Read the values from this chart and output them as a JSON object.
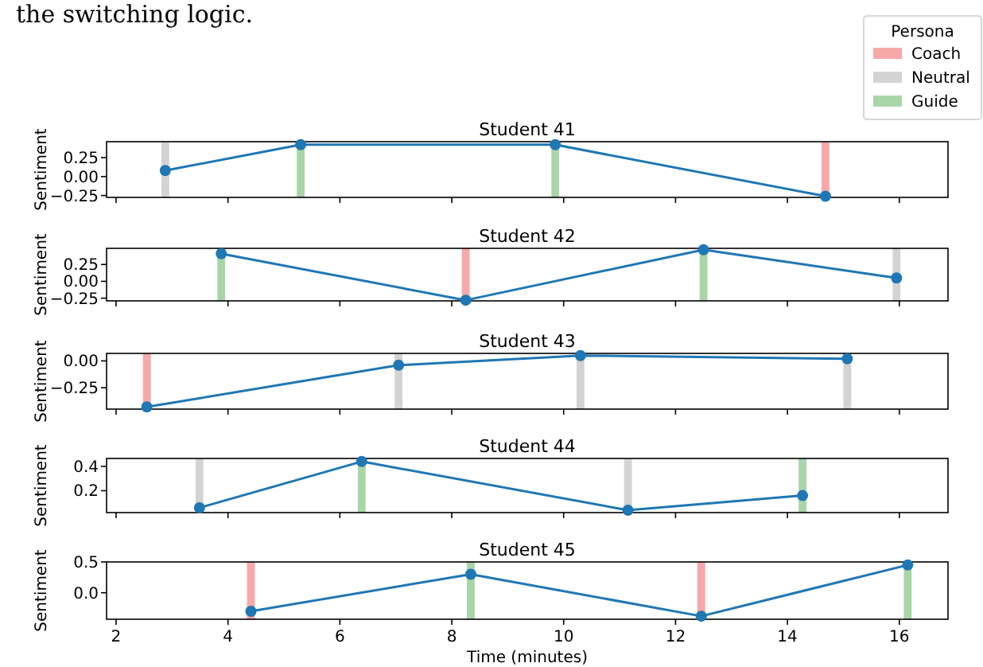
{
  "chart_data": [
    {
      "type": "line",
      "title": "Student 41",
      "ylabel": "Sentiment",
      "annotations": [
        "the switching logic."
      ],
      "legend": "top right",
      "legend_title": "Persona",
      "x": [
        2.88,
        5.3,
        9.85,
        14.68
      ],
      "values": [
        0.08,
        0.42,
        0.42,
        -0.26
      ],
      "color": "#1f77b4",
      "marker": "circle",
      "xlim": [
        1.83,
        16.87
      ],
      "ylim": [
        -0.275,
        0.46
      ],
      "xticks": [
        {
          "value": 2,
          "label": null
        },
        {
          "value": 4,
          "label": null
        },
        {
          "value": 6,
          "label": null
        },
        {
          "value": 8,
          "label": null
        },
        {
          "value": 10,
          "label": null
        },
        {
          "value": 12,
          "label": null
        },
        {
          "value": 14,
          "label": null
        },
        {
          "value": 16,
          "label": null
        }
      ],
      "yticks": [
        {
          "value": -0.25,
          "label": "−0.25"
        },
        {
          "value": 0,
          "label": "0.00"
        },
        {
          "value": 0.25,
          "label": "0.25"
        }
      ],
      "tick_labels": "y",
      "bands": [
        {
          "axis": "x",
          "from": 14.61,
          "to": 14.75,
          "label": "Coach",
          "color": "#f7a8a8"
        },
        {
          "axis": "x",
          "from": 2.81,
          "to": 2.95,
          "label": "Neutral",
          "color": "#d3d3d3"
        },
        {
          "axis": "x",
          "from": 5.23,
          "to": 5.37,
          "label": "Guide",
          "color": "#a9d5a9"
        },
        {
          "axis": "x",
          "from": 9.78,
          "to": 9.92,
          "color": "#a9d5a9"
        }
      ]
    },
    {
      "type": "line",
      "title": "Student 42",
      "ylabel": "Sentiment",
      "x": [
        3.88,
        8.25,
        12.5,
        15.95
      ],
      "values": [
        0.41,
        -0.28,
        0.47,
        0.05
      ],
      "color": "#1f77b4",
      "marker": "circle",
      "xlim": [
        1.83,
        16.87
      ],
      "ylim": [
        -0.29,
        0.49
      ],
      "xticks": [
        {
          "value": 2,
          "label": null
        },
        {
          "value": 4,
          "label": null
        },
        {
          "value": 6,
          "label": null
        },
        {
          "value": 8,
          "label": null
        },
        {
          "value": 10,
          "label": null
        },
        {
          "value": 12,
          "label": null
        },
        {
          "value": 14,
          "label": null
        },
        {
          "value": 16,
          "label": null
        }
      ],
      "yticks": [
        {
          "value": -0.25,
          "label": "−0.25"
        },
        {
          "value": 0,
          "label": "0.00"
        },
        {
          "value": 0.25,
          "label": "0.25"
        }
      ],
      "tick_labels": "y",
      "bands": [
        {
          "axis": "x",
          "from": 3.81,
          "to": 3.95,
          "color": "#a9d5a9"
        },
        {
          "axis": "x",
          "from": 8.18,
          "to": 8.32,
          "color": "#f7a8a8"
        },
        {
          "axis": "x",
          "from": 12.43,
          "to": 12.57,
          "color": "#a9d5a9"
        },
        {
          "axis": "x",
          "from": 15.88,
          "to": 16.02,
          "color": "#d3d3d3"
        }
      ]
    },
    {
      "type": "line",
      "title": "Student 43",
      "ylabel": "Sentiment",
      "x": [
        2.55,
        7.05,
        10.3,
        15.07
      ],
      "values": [
        -0.43,
        -0.04,
        0.05,
        0.02
      ],
      "color": "#1f77b4",
      "marker": "circle",
      "xlim": [
        1.83,
        16.87
      ],
      "ylim": [
        -0.45,
        0.07
      ],
      "xticks": [
        {
          "value": 2,
          "label": null
        },
        {
          "value": 4,
          "label": null
        },
        {
          "value": 6,
          "label": null
        },
        {
          "value": 8,
          "label": null
        },
        {
          "value": 10,
          "label": null
        },
        {
          "value": 12,
          "label": null
        },
        {
          "value": 14,
          "label": null
        },
        {
          "value": 16,
          "label": null
        }
      ],
      "yticks": [
        {
          "value": -0.25,
          "label": "−0.25"
        },
        {
          "value": 0,
          "label": "0.00"
        }
      ],
      "tick_labels": "y",
      "bands": [
        {
          "axis": "x",
          "from": 2.48,
          "to": 2.62,
          "color": "#f7a8a8"
        },
        {
          "axis": "x",
          "from": 6.98,
          "to": 7.12,
          "color": "#d3d3d3"
        },
        {
          "axis": "x",
          "from": 10.23,
          "to": 10.37,
          "color": "#d3d3d3"
        },
        {
          "axis": "x",
          "from": 15.0,
          "to": 15.14,
          "color": "#d3d3d3"
        }
      ]
    },
    {
      "type": "line",
      "title": "Student 44",
      "ylabel": "Sentiment",
      "x": [
        3.49,
        6.39,
        11.15,
        14.27
      ],
      "values": [
        0.06,
        0.44,
        0.04,
        0.16
      ],
      "color": "#1f77b4",
      "marker": "circle",
      "xlim": [
        1.83,
        16.87
      ],
      "ylim": [
        0.02,
        0.465
      ],
      "xticks": [
        {
          "value": 2,
          "label": null
        },
        {
          "value": 4,
          "label": null
        },
        {
          "value": 6,
          "label": null
        },
        {
          "value": 8,
          "label": null
        },
        {
          "value": 10,
          "label": null
        },
        {
          "value": 12,
          "label": null
        },
        {
          "value": 14,
          "label": null
        },
        {
          "value": 16,
          "label": null
        }
      ],
      "yticks": [
        0.2,
        0.4
      ],
      "tick_labels": "y",
      "bands": [
        {
          "axis": "x",
          "from": 3.42,
          "to": 3.56,
          "color": "#d3d3d3"
        },
        {
          "axis": "x",
          "from": 6.32,
          "to": 6.46,
          "color": "#a9d5a9"
        },
        {
          "axis": "x",
          "from": 11.08,
          "to": 11.22,
          "color": "#d3d3d3"
        },
        {
          "axis": "x",
          "from": 14.2,
          "to": 14.34,
          "color": "#a9d5a9"
        }
      ]
    },
    {
      "type": "line",
      "title": "Student 45",
      "xlabel": "Time (minutes)",
      "ylabel": "Sentiment",
      "x": [
        4.41,
        8.34,
        12.46,
        16.15
      ],
      "values": [
        -0.3,
        0.3,
        -0.38,
        0.45
      ],
      "color": "#1f77b4",
      "marker": "circle",
      "xlim": [
        1.83,
        16.87
      ],
      "ylim": [
        -0.43,
        0.5
      ],
      "xticks": [
        2,
        4,
        6,
        8,
        10,
        12,
        14,
        16
      ],
      "yticks": [
        {
          "value": 0,
          "label": "0.0"
        },
        0.5
      ],
      "bands": [
        {
          "axis": "x",
          "from": 4.34,
          "to": 4.48,
          "color": "#f7a8a8"
        },
        {
          "axis": "x",
          "from": 8.27,
          "to": 8.41,
          "color": "#a9d5a9"
        },
        {
          "axis": "x",
          "from": 12.39,
          "to": 12.53,
          "color": "#f7a8a8"
        },
        {
          "axis": "x",
          "from": 16.08,
          "to": 16.22,
          "color": "#a9d5a9"
        }
      ]
    }
  ]
}
